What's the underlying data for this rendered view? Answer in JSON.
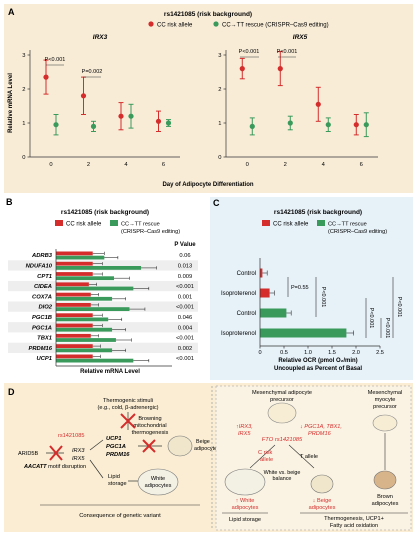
{
  "panel_labels": [
    "A",
    "B",
    "C",
    "D"
  ],
  "colors": {
    "cc": "#d42d2c",
    "tt": "#3a9a5c",
    "panelA_bg": "#f8ecd7",
    "panelC_bg": "#e6f1f8",
    "panelD_bg": "#faedd3",
    "rs_red": "#d42d2c"
  },
  "chart_data": [
    {
      "panel": "A",
      "type": "scatter",
      "title": "rs1421085 (risk background)",
      "legend": [
        "CC risk allele",
        "CC→TT rescue (CRISPR–Cas9 editing)"
      ],
      "ylabel": "Relative mRNA Level",
      "xlabel": "Day of Adipocyte Differentiation",
      "ylim": [
        0,
        3
      ],
      "subplots": [
        {
          "title": "IRX3",
          "x": [
            0,
            2,
            4,
            6
          ],
          "series": [
            {
              "name": "CC risk allele",
              "values": [
                2.35,
                1.8,
                1.2,
                1.05
              ],
              "err": [
                0.5,
                0.55,
                0.4,
                0.3
              ]
            },
            {
              "name": "CC→TT rescue (CRISPR–Cas9 editing)",
              "values": [
                0.95,
                0.9,
                1.2,
                1.0
              ],
              "err": [
                0.3,
                0.15,
                0.35,
                0.1
              ]
            }
          ],
          "annotations": [
            "P<0.001",
            "P=0.002"
          ]
        },
        {
          "title": "IRX5",
          "x": [
            0,
            2,
            4,
            6
          ],
          "series": [
            {
              "name": "CC risk allele",
              "values": [
                2.6,
                2.6,
                1.55,
                0.95
              ],
              "err": [
                0.3,
                0.5,
                0.5,
                0.3
              ]
            },
            {
              "name": "CC→TT rescue (CRISPR–Cas9 editing)",
              "values": [
                0.9,
                1.0,
                0.95,
                0.95
              ],
              "err": [
                0.25,
                0.2,
                0.2,
                0.35
              ]
            }
          ],
          "annotations": [
            "P<0.001",
            "P<0.001"
          ]
        }
      ],
      "xticks": [
        "0",
        "2",
        "4",
        "6"
      ],
      "yticks": [
        "0",
        "1",
        "2",
        "3"
      ]
    },
    {
      "panel": "B",
      "type": "bar",
      "title": "rs1421085 (risk background)",
      "legend": [
        "CC risk allele",
        "CC→TT rescue (CRISPR–Cas9 editing)"
      ],
      "xlabel": "Relative mRNA Level",
      "pvalue_header": "P Value",
      "categories": [
        "ADRB3",
        "NDUFA10",
        "CPT1",
        "CIDEA",
        "COX7A",
        "DIO2",
        "PGC1B",
        "PGC1A",
        "TBX1",
        "PRDM16",
        "UCP1"
      ],
      "pvalues": [
        "0.06",
        "0.013",
        "0.009",
        "<0.001",
        "0.001",
        "<0.001",
        "0.046",
        "0.004",
        "<0.001",
        "0.002",
        "<0.001"
      ],
      "series": [
        {
          "name": "CC risk allele",
          "values": [
            0.95,
            0.95,
            0.95,
            0.85,
            0.9,
            0.9,
            0.95,
            0.95,
            0.9,
            0.95,
            0.95
          ],
          "err": [
            0.3,
            0.25,
            0.25,
            0.2,
            0.2,
            0.2,
            0.25,
            0.25,
            0.2,
            0.2,
            0.2
          ]
        },
        {
          "name": "CC→TT rescue (CRISPR–Cas9 editing)",
          "values": [
            1.25,
            2.2,
            1.5,
            2.0,
            1.45,
            1.9,
            1.35,
            1.45,
            1.55,
            1.45,
            2.0
          ],
          "err": [
            0.35,
            0.4,
            0.4,
            0.4,
            0.35,
            0.4,
            0.35,
            0.35,
            0.4,
            0.35,
            0.4
          ]
        }
      ],
      "xlim": [
        0,
        3
      ]
    },
    {
      "panel": "C",
      "type": "bar",
      "title": "rs1421085 (risk background)",
      "legend": [
        "CC risk allele",
        "CC→TT rescue (CRISPR–Cas9 editing)"
      ],
      "xlabel": "Relative OCR (pmol O₂/min)",
      "xlabel2": "Uncoupled as Percent of Basal",
      "categories": [
        "Control",
        "Isoproterenol",
        "Control",
        "Isoproterenol"
      ],
      "series_of_row": [
        "CC risk allele",
        "CC risk allele",
        "CC→TT rescue (CRISPR–Cas9 editing)",
        "CC→TT rescue (CRISPR–Cas9 editing)"
      ],
      "values": [
        0.05,
        0.2,
        0.55,
        1.8
      ],
      "err": [
        0.1,
        0.1,
        0.1,
        0.15
      ],
      "xlim": [
        0,
        2.5
      ],
      "xticks": [
        "0",
        "0.5",
        "1.0",
        "1.5",
        "2.0",
        "2.5"
      ],
      "annotations": [
        "P=0.55",
        "P<0.001",
        "P<0.001",
        "P<0.001",
        "P<0.001"
      ]
    }
  ],
  "panel_d": {
    "left": {
      "thermogenic_stimuli": [
        "Thermogenic stimuli",
        "(e.g., cold, β-adrenergic)"
      ],
      "rs_label": "rs1421085",
      "arid5b": "ARID5B",
      "motif": "AACATT",
      "motif_suffix": " motif disruption",
      "irx": [
        "IRX3",
        "IRX5"
      ],
      "genes": [
        "UCP1",
        "PGC1A",
        "PRDM16"
      ],
      "browning": [
        "Browning",
        "mitochondrial",
        "thermogenesis"
      ],
      "beige": [
        "Beige",
        "adipocytes"
      ],
      "lipid": [
        "Lipid",
        "storage"
      ],
      "white": [
        "White",
        "adipocytes"
      ],
      "consequence": "Consequence of genetic variant"
    },
    "right": {
      "precursor": [
        "Mesenchymal adipocyte",
        "precursor"
      ],
      "myocyte": [
        "Mesenchymal",
        "myocyte",
        "precursor"
      ],
      "irx_up": [
        "↑IRX3,",
        "IRX5"
      ],
      "pgc_down": [
        "↓ PGC1A, TBX1,",
        "PRDM16"
      ],
      "fto": "FTO rs1421085",
      "c_risk": [
        "C risk",
        "allele"
      ],
      "t_allele": "T allele",
      "balance": [
        "White vs. beige",
        "balance"
      ],
      "white_up": [
        "↑ White",
        "adipocytes"
      ],
      "beige_down": [
        "↓ Beige",
        "adipocytes"
      ],
      "brown": [
        "Brown",
        "adipocytes"
      ],
      "lipid": "Lipid storage",
      "thermo": [
        "Thermogenesis, UCP1+",
        "Fatty acid oxidation"
      ]
    }
  }
}
